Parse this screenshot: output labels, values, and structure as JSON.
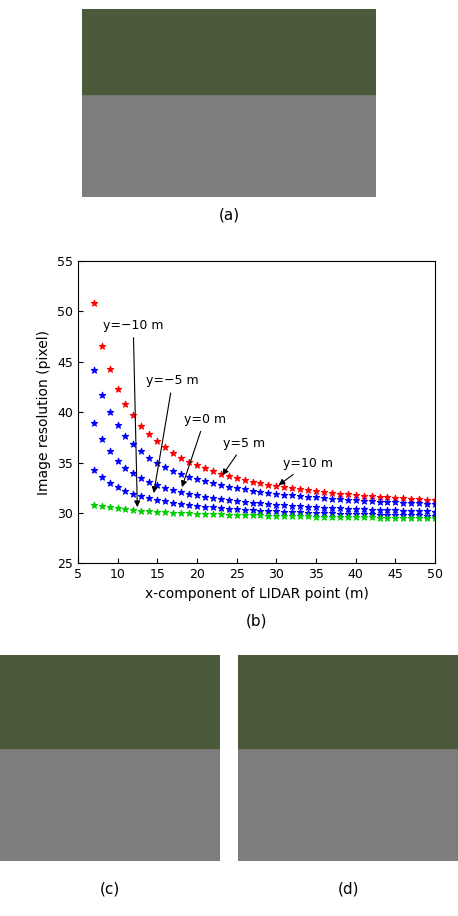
{
  "panel_labels": [
    "(a)",
    "(b)",
    "(c)",
    "(d)"
  ],
  "chart_data": {
    "type": "scatter",
    "marker": "*",
    "x_label": "x-component of LIDAR point (m)",
    "y_label": "Image resolution (pixel)",
    "xlim": [
      5,
      50
    ],
    "xticks": [
      5,
      10,
      15,
      20,
      25,
      30,
      35,
      40,
      45,
      50
    ],
    "ylim": [
      25,
      55
    ],
    "yticks": [
      25,
      30,
      35,
      40,
      45,
      50,
      55
    ],
    "x": [
      7,
      8,
      9,
      10,
      11,
      12,
      13,
      14,
      15,
      16,
      17,
      18,
      19,
      20,
      21,
      22,
      23,
      24,
      25,
      26,
      27,
      28,
      29,
      30,
      31,
      32,
      33,
      34,
      35,
      36,
      37,
      38,
      39,
      40,
      41,
      42,
      43,
      44,
      45,
      46,
      47,
      48,
      49,
      50
    ],
    "series": [
      {
        "name": "y=10 m",
        "color": "#ff0000",
        "values": [
          50.8,
          46.6,
          44.3,
          42.3,
          40.8,
          39.7,
          38.6,
          37.8,
          37.1,
          36.5,
          36.0,
          35.5,
          35.1,
          34.8,
          34.5,
          34.2,
          33.9,
          33.7,
          33.5,
          33.3,
          33.1,
          33.0,
          32.8,
          32.7,
          32.6,
          32.5,
          32.4,
          32.3,
          32.2,
          32.1,
          32.0,
          31.9,
          31.9,
          31.8,
          31.7,
          31.7,
          31.6,
          31.6,
          31.5,
          31.5,
          31.4,
          31.4,
          31.3,
          31.3
        ]
      },
      {
        "name": "y=5 m",
        "color": "#0000ff",
        "values": [
          44.2,
          41.7,
          40.0,
          38.7,
          37.6,
          36.8,
          36.1,
          35.5,
          35.0,
          34.6,
          34.2,
          33.9,
          33.6,
          33.4,
          33.2,
          33.0,
          32.8,
          32.6,
          32.5,
          32.4,
          32.2,
          32.1,
          32.0,
          31.9,
          31.8,
          31.8,
          31.7,
          31.6,
          31.6,
          31.5,
          31.4,
          31.4,
          31.3,
          31.3,
          31.2,
          31.2,
          31.1,
          31.1,
          31.1,
          31.0,
          31.0,
          31.0,
          30.9,
          30.9
        ]
      },
      {
        "name": "y=0 m",
        "color": "#0000ff",
        "values": [
          38.9,
          37.3,
          36.1,
          35.2,
          34.5,
          34.0,
          33.5,
          33.1,
          32.8,
          32.5,
          32.3,
          32.1,
          31.9,
          31.8,
          31.6,
          31.5,
          31.4,
          31.3,
          31.2,
          31.1,
          31.0,
          31.0,
          30.9,
          30.8,
          30.8,
          30.7,
          30.7,
          30.6,
          30.6,
          30.5,
          30.5,
          30.5,
          30.4,
          30.4,
          30.4,
          30.3,
          30.3,
          30.3,
          30.3,
          30.2,
          30.2,
          30.2,
          30.2,
          30.1
        ]
      },
      {
        "name": "y=−5 m",
        "color": "#0000ff",
        "values": [
          34.3,
          33.6,
          33.0,
          32.6,
          32.2,
          31.9,
          31.7,
          31.5,
          31.3,
          31.2,
          31.0,
          30.9,
          30.8,
          30.7,
          30.6,
          30.6,
          30.5,
          30.4,
          30.4,
          30.3,
          30.3,
          30.2,
          30.2,
          30.2,
          30.1,
          30.1,
          30.1,
          30.0,
          30.0,
          30.0,
          30.0,
          29.9,
          29.9,
          29.9,
          29.9,
          29.9,
          29.8,
          29.8,
          29.8,
          29.8,
          29.8,
          29.8,
          29.7,
          29.7
        ]
      },
      {
        "name": "y=−10 m",
        "color": "#00cc00",
        "values": [
          30.8,
          30.7,
          30.6,
          30.5,
          30.4,
          30.3,
          30.2,
          30.2,
          30.1,
          30.1,
          30.0,
          30.0,
          30.0,
          29.9,
          29.9,
          29.9,
          29.9,
          29.8,
          29.8,
          29.8,
          29.8,
          29.8,
          29.7,
          29.7,
          29.7,
          29.7,
          29.7,
          29.7,
          29.6,
          29.6,
          29.6,
          29.6,
          29.6,
          29.6,
          29.6,
          29.6,
          29.5,
          29.5,
          29.5,
          29.5,
          29.5,
          29.5,
          29.5,
          29.5
        ]
      }
    ],
    "annotations": [
      {
        "text": "y=−10 m",
        "x": 12.5,
        "y": 30.3
      },
      {
        "text": "y=−5 m",
        "x": 14.5,
        "y": 31.7
      },
      {
        "text": "y=0 m",
        "x": 18,
        "y": 32.3
      },
      {
        "text": "y=5 m",
        "x": 23,
        "y": 33.5
      },
      {
        "text": "y=10 m",
        "x": 30,
        "y": 32.6
      }
    ]
  }
}
